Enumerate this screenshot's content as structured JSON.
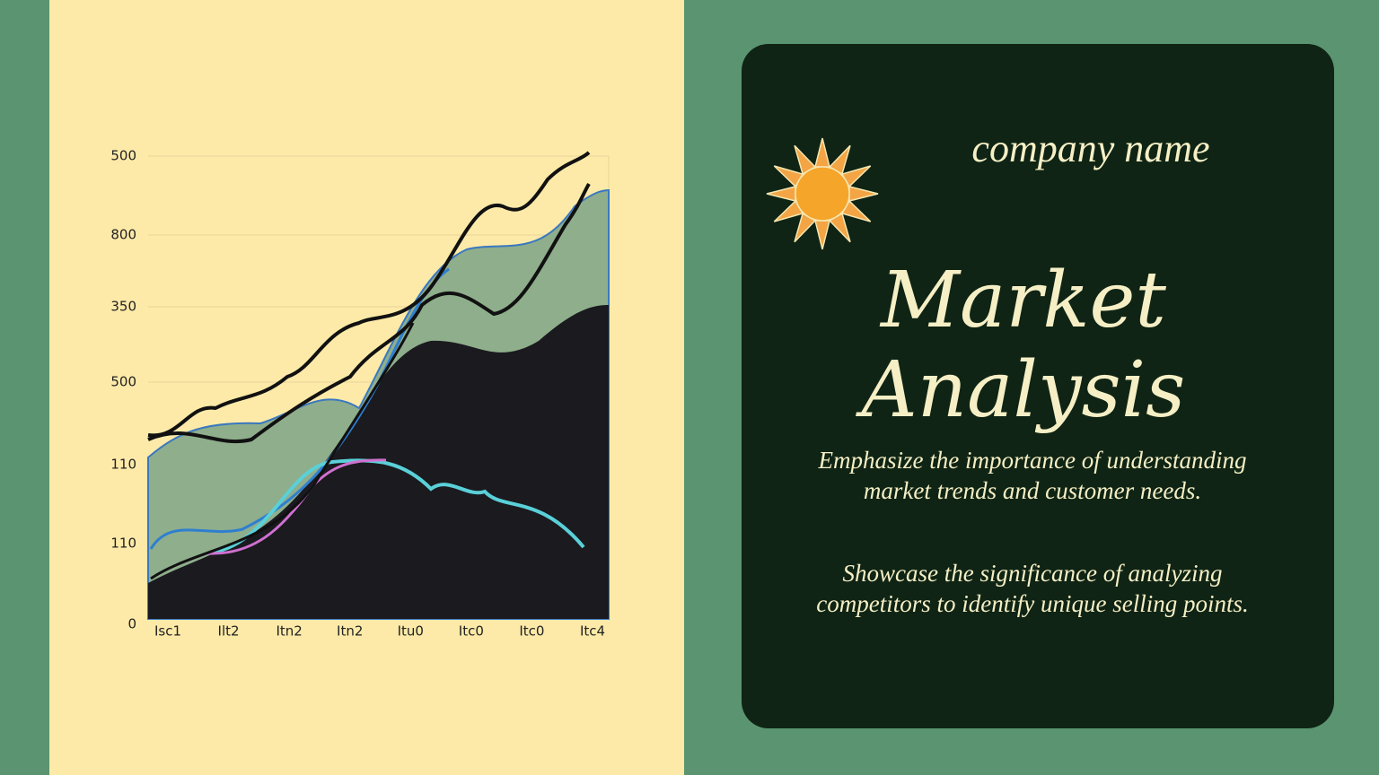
{
  "illustration": {
    "y_labels": [
      "500",
      "800",
      "350",
      "500",
      "110",
      "110",
      "0"
    ],
    "x_labels": [
      "Isc1",
      "Ilt2",
      "Itn2",
      "Itn2",
      "Itu0",
      "Itc0",
      "Itc0",
      "Itc4"
    ]
  },
  "card": {
    "company": "company name",
    "title": "Market Analysis",
    "paragraphs": [
      "Emphasize the importance of understanding market trends and customer needs.",
      "Showcase the significance of analyzing competitors to identify unique selling points."
    ]
  }
}
